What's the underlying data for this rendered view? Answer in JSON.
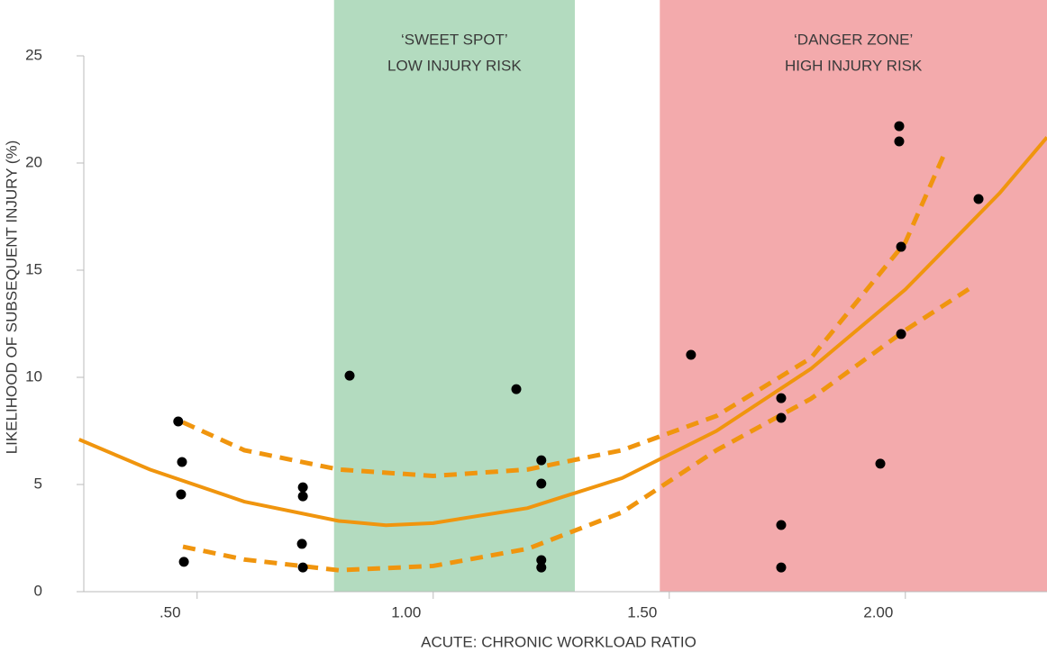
{
  "chart_data": {
    "type": "scatter",
    "x_label": "ACUTE: CHRONIC WORKLOAD RATIO",
    "y_label": "LIKELIHOOD OF SUBSEQUENT INJURY (%)",
    "xlim": [
      0.26,
      2.3
    ],
    "ylim": [
      0,
      25
    ],
    "xticks": [
      {
        "value": 0.5,
        "label": ".50"
      },
      {
        "value": 1,
        "label": "1.00"
      },
      {
        "value": 1.5,
        "label": "1.50"
      },
      {
        "value": 2,
        "label": "2.00"
      }
    ],
    "yticks": [
      0,
      5,
      10,
      15,
      20,
      25
    ],
    "zones": [
      {
        "range": [
          0.79,
          1.3
        ],
        "color": "#b3dbbf",
        "label": [
          "‘SWEET SPOT’",
          "LOW INJURY RISK"
        ]
      },
      {
        "range": [
          1.48,
          2.3
        ],
        "color": "#f3aaac",
        "label": [
          "‘DANGER ZONE’",
          "HIGH INJURY RISK"
        ]
      }
    ],
    "points": {
      "color": "#000000",
      "x": [
        0.46,
        0.468,
        0.466,
        0.472,
        0.724,
        0.724,
        0.722,
        0.724,
        0.823,
        1.176,
        1.229,
        1.229,
        1.229,
        1.229,
        1.546,
        1.737,
        1.737,
        1.737,
        1.737,
        1.947,
        1.987,
        1.987,
        1.991,
        1.991,
        2.155
      ],
      "y": [
        7.94,
        6.05,
        4.54,
        1.39,
        4.87,
        4.45,
        2.23,
        1.13,
        10.08,
        9.45,
        6.13,
        5.04,
        1.47,
        1.13,
        11.05,
        9.03,
        8.11,
        3.11,
        1.13,
        5.97,
        21.72,
        21.01,
        16.09,
        12.02,
        18.32
      ]
    },
    "lines": [
      {
        "color": "#f0950e",
        "dashed": false,
        "x": [
          0.25,
          0.4,
          0.6,
          0.8,
          0.9,
          1.0,
          1.2,
          1.4,
          1.6,
          1.8,
          2.0,
          2.2,
          2.3
        ],
        "y": [
          7.1,
          5.7,
          4.2,
          3.3,
          3.1,
          3.2,
          3.9,
          5.3,
          7.5,
          10.4,
          14.1,
          18.6,
          21.2
        ]
      },
      {
        "color": "#f0950e",
        "dashed": true,
        "x": [
          0.47,
          0.6,
          0.8,
          1.0,
          1.2,
          1.4,
          1.6,
          1.8,
          2.0,
          2.08
        ],
        "y": [
          7.9,
          6.6,
          5.7,
          5.4,
          5.7,
          6.6,
          8.2,
          10.9,
          16.3,
          20.3
        ]
      },
      {
        "color": "#f0950e",
        "dashed": true,
        "x": [
          0.47,
          0.6,
          0.8,
          1.0,
          1.2,
          1.4,
          1.6,
          1.8,
          2.0,
          2.14
        ],
        "y": [
          2.1,
          1.5,
          1.0,
          1.2,
          2.0,
          3.7,
          6.6,
          9.0,
          12.2,
          14.2
        ]
      }
    ]
  }
}
